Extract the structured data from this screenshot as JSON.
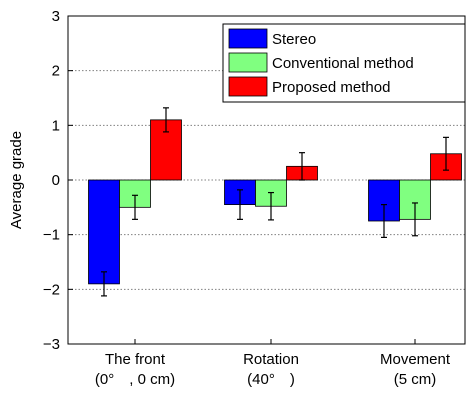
{
  "chart_data": {
    "type": "bar",
    "title": "",
    "ylabel": "Average grade",
    "xlabel": "",
    "ylim": [
      -3,
      3
    ],
    "yticks": [
      -3,
      -2,
      -1,
      0,
      1,
      2,
      3
    ],
    "grid": "horizontal dotted",
    "legend_position": "top-right",
    "categories": [
      {
        "line1": "The front",
        "line2": "(0°　, 0 cm)"
      },
      {
        "line1": "Rotation",
        "line2": "(40°　)"
      },
      {
        "line1": "Movement",
        "line2": "(5 cm)"
      }
    ],
    "series": [
      {
        "name": "Stereo",
        "color": "#0000ff",
        "values": [
          -1.9,
          -0.45,
          -0.75
        ],
        "errors": [
          0.22,
          0.27,
          0.3
        ]
      },
      {
        "name": "Conventional method",
        "color": "#80ff80",
        "values": [
          -0.5,
          -0.48,
          -0.72
        ],
        "errors": [
          0.22,
          0.25,
          0.3
        ]
      },
      {
        "name": "Proposed method",
        "color": "#ff0000",
        "values": [
          1.1,
          0.25,
          0.48
        ],
        "errors": [
          0.22,
          0.25,
          0.3
        ]
      }
    ]
  }
}
